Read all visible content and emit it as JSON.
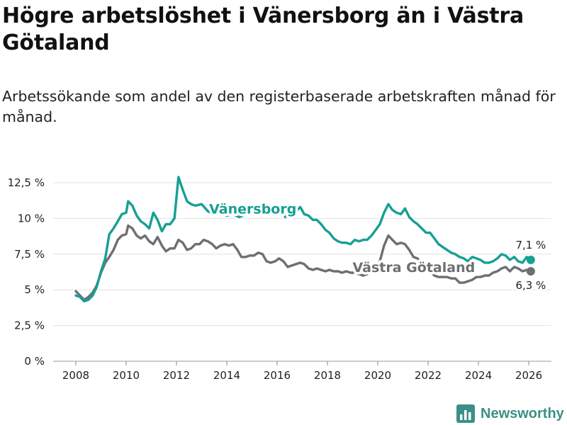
{
  "header": {
    "title": "Högre arbetslöshet i Vänersborg än i Västra Götaland",
    "subtitle": "Arbetssökande som andel av den registerbaserade arbetskraften månad för månad."
  },
  "brand": {
    "name": "Newsworthy",
    "icon": "bar-chart-logo-icon",
    "color": "#3c8f88"
  },
  "chart_data": {
    "type": "line",
    "title": "Högre arbetslöshet i Vänersborg än i Västra Götaland",
    "xlabel": "",
    "ylabel": "",
    "xlim": [
      2007.1,
      2026.9
    ],
    "ylim": [
      0,
      12.5
    ],
    "x_ticks": [
      2008,
      2010,
      2012,
      2014,
      2016,
      2018,
      2020,
      2022,
      2024,
      2026
    ],
    "x_tick_labels": [
      "2008",
      "2010",
      "2012",
      "2014",
      "2016",
      "2018",
      "2020",
      "2022",
      "2024",
      "2026"
    ],
    "y_ticks": [
      0,
      2.5,
      5,
      7.5,
      10,
      12.5
    ],
    "y_tick_labels": [
      "0 %",
      "2,5 %",
      "5 %",
      "7,5 %",
      "10 %",
      "12,5 %"
    ],
    "grid": true,
    "series": [
      {
        "name": "Vänersborg",
        "color": "#16a092",
        "end_label": "7,1 %",
        "points": [
          [
            2008.0,
            4.6
          ],
          [
            2008.17,
            4.5
          ],
          [
            2008.33,
            4.2
          ],
          [
            2008.5,
            4.3
          ],
          [
            2008.67,
            4.6
          ],
          [
            2008.83,
            5.2
          ],
          [
            2009.0,
            6.3
          ],
          [
            2009.17,
            7.2
          ],
          [
            2009.33,
            8.9
          ],
          [
            2009.5,
            9.3
          ],
          [
            2009.67,
            9.8
          ],
          [
            2009.83,
            10.3
          ],
          [
            2010.0,
            10.4
          ],
          [
            2010.08,
            11.2
          ],
          [
            2010.25,
            10.9
          ],
          [
            2010.42,
            10.2
          ],
          [
            2010.58,
            9.8
          ],
          [
            2010.75,
            9.6
          ],
          [
            2010.92,
            9.3
          ],
          [
            2011.08,
            10.4
          ],
          [
            2011.25,
            9.9
          ],
          [
            2011.42,
            9.1
          ],
          [
            2011.58,
            9.6
          ],
          [
            2011.75,
            9.6
          ],
          [
            2011.92,
            10.0
          ],
          [
            2012.08,
            12.9
          ],
          [
            2012.25,
            12.0
          ],
          [
            2012.42,
            11.2
          ],
          [
            2012.58,
            11.0
          ],
          [
            2012.75,
            10.9
          ],
          [
            2013.0,
            11.0
          ],
          [
            2013.25,
            10.5
          ],
          [
            2013.5,
            10.3
          ],
          [
            2013.75,
            10.4
          ],
          [
            2014.0,
            10.2
          ],
          [
            2014.25,
            10.3
          ],
          [
            2014.5,
            10.1
          ],
          [
            2014.75,
            10.3
          ],
          [
            2015.0,
            10.5
          ],
          [
            2015.25,
            10.3
          ],
          [
            2015.5,
            10.5
          ],
          [
            2015.75,
            10.7
          ],
          [
            2016.0,
            10.9
          ],
          [
            2016.17,
            10.6
          ],
          [
            2016.33,
            10.1
          ],
          [
            2016.5,
            10.3
          ],
          [
            2016.75,
            10.5
          ],
          [
            2016.92,
            10.8
          ],
          [
            2017.08,
            10.3
          ],
          [
            2017.25,
            10.2
          ],
          [
            2017.42,
            9.9
          ],
          [
            2017.58,
            9.9
          ],
          [
            2017.75,
            9.6
          ],
          [
            2017.92,
            9.2
          ],
          [
            2018.08,
            9.0
          ],
          [
            2018.25,
            8.6
          ],
          [
            2018.42,
            8.4
          ],
          [
            2018.58,
            8.3
          ],
          [
            2018.75,
            8.3
          ],
          [
            2018.92,
            8.2
          ],
          [
            2019.08,
            8.5
          ],
          [
            2019.25,
            8.4
          ],
          [
            2019.42,
            8.5
          ],
          [
            2019.58,
            8.5
          ],
          [
            2019.75,
            8.8
          ],
          [
            2019.92,
            9.2
          ],
          [
            2020.08,
            9.6
          ],
          [
            2020.25,
            10.4
          ],
          [
            2020.42,
            11.0
          ],
          [
            2020.58,
            10.6
          ],
          [
            2020.75,
            10.4
          ],
          [
            2020.92,
            10.3
          ],
          [
            2021.08,
            10.7
          ],
          [
            2021.25,
            10.1
          ],
          [
            2021.42,
            9.8
          ],
          [
            2021.58,
            9.6
          ],
          [
            2021.75,
            9.3
          ],
          [
            2021.92,
            9.0
          ],
          [
            2022.08,
            9.0
          ],
          [
            2022.25,
            8.6
          ],
          [
            2022.42,
            8.2
          ],
          [
            2022.58,
            8.0
          ],
          [
            2022.75,
            7.8
          ],
          [
            2022.92,
            7.6
          ],
          [
            2023.08,
            7.5
          ],
          [
            2023.25,
            7.3
          ],
          [
            2023.42,
            7.2
          ],
          [
            2023.58,
            7.0
          ],
          [
            2023.75,
            7.3
          ],
          [
            2023.92,
            7.2
          ],
          [
            2024.08,
            7.1
          ],
          [
            2024.25,
            6.9
          ],
          [
            2024.42,
            6.9
          ],
          [
            2024.58,
            7.0
          ],
          [
            2024.75,
            7.2
          ],
          [
            2024.92,
            7.5
          ],
          [
            2025.08,
            7.4
          ],
          [
            2025.25,
            7.1
          ],
          [
            2025.42,
            7.3
          ],
          [
            2025.58,
            7.0
          ],
          [
            2025.75,
            6.9
          ],
          [
            2025.92,
            7.3
          ],
          [
            2026.08,
            7.1
          ]
        ]
      },
      {
        "name": "Västra Götaland",
        "color": "#6e6e73",
        "end_label": "6,3 %",
        "points": [
          [
            2008.0,
            4.9
          ],
          [
            2008.17,
            4.6
          ],
          [
            2008.33,
            4.3
          ],
          [
            2008.5,
            4.5
          ],
          [
            2008.67,
            4.8
          ],
          [
            2008.83,
            5.3
          ],
          [
            2009.0,
            6.2
          ],
          [
            2009.17,
            6.9
          ],
          [
            2009.33,
            7.3
          ],
          [
            2009.5,
            7.8
          ],
          [
            2009.67,
            8.5
          ],
          [
            2009.83,
            8.8
          ],
          [
            2010.0,
            8.9
          ],
          [
            2010.08,
            9.5
          ],
          [
            2010.25,
            9.3
          ],
          [
            2010.42,
            8.8
          ],
          [
            2010.58,
            8.6
          ],
          [
            2010.75,
            8.8
          ],
          [
            2010.92,
            8.4
          ],
          [
            2011.08,
            8.2
          ],
          [
            2011.25,
            8.7
          ],
          [
            2011.42,
            8.1
          ],
          [
            2011.58,
            7.7
          ],
          [
            2011.75,
            7.9
          ],
          [
            2011.92,
            7.9
          ],
          [
            2012.08,
            8.5
          ],
          [
            2012.25,
            8.3
          ],
          [
            2012.42,
            7.8
          ],
          [
            2012.58,
            7.9
          ],
          [
            2012.75,
            8.2
          ],
          [
            2012.92,
            8.2
          ],
          [
            2013.08,
            8.5
          ],
          [
            2013.25,
            8.4
          ],
          [
            2013.42,
            8.2
          ],
          [
            2013.58,
            7.9
          ],
          [
            2013.75,
            8.1
          ],
          [
            2013.92,
            8.2
          ],
          [
            2014.08,
            8.1
          ],
          [
            2014.25,
            8.2
          ],
          [
            2014.42,
            7.8
          ],
          [
            2014.58,
            7.3
          ],
          [
            2014.75,
            7.3
          ],
          [
            2014.92,
            7.4
          ],
          [
            2015.08,
            7.4
          ],
          [
            2015.25,
            7.6
          ],
          [
            2015.42,
            7.5
          ],
          [
            2015.58,
            7.0
          ],
          [
            2015.75,
            6.9
          ],
          [
            2015.92,
            7.0
          ],
          [
            2016.08,
            7.2
          ],
          [
            2016.25,
            7.0
          ],
          [
            2016.42,
            6.6
          ],
          [
            2016.58,
            6.7
          ],
          [
            2016.75,
            6.8
          ],
          [
            2016.92,
            6.9
          ],
          [
            2017.08,
            6.8
          ],
          [
            2017.25,
            6.5
          ],
          [
            2017.42,
            6.4
          ],
          [
            2017.58,
            6.5
          ],
          [
            2017.75,
            6.4
          ],
          [
            2017.92,
            6.3
          ],
          [
            2018.08,
            6.4
          ],
          [
            2018.25,
            6.3
          ],
          [
            2018.42,
            6.3
          ],
          [
            2018.58,
            6.2
          ],
          [
            2018.75,
            6.3
          ],
          [
            2018.92,
            6.2
          ],
          [
            2019.08,
            6.2
          ],
          [
            2019.25,
            6.1
          ],
          [
            2019.42,
            6.0
          ],
          [
            2019.58,
            6.1
          ],
          [
            2019.75,
            6.3
          ],
          [
            2019.92,
            6.5
          ],
          [
            2020.08,
            7.0
          ],
          [
            2020.25,
            8.1
          ],
          [
            2020.42,
            8.8
          ],
          [
            2020.58,
            8.5
          ],
          [
            2020.75,
            8.2
          ],
          [
            2020.92,
            8.3
          ],
          [
            2021.08,
            8.2
          ],
          [
            2021.25,
            7.8
          ],
          [
            2021.42,
            7.3
          ],
          [
            2021.58,
            7.2
          ],
          [
            2021.75,
            6.8
          ],
          [
            2021.92,
            6.6
          ],
          [
            2022.08,
            6.3
          ],
          [
            2022.25,
            6.0
          ],
          [
            2022.42,
            5.9
          ],
          [
            2022.58,
            5.9
          ],
          [
            2022.75,
            5.9
          ],
          [
            2022.92,
            5.8
          ],
          [
            2023.08,
            5.8
          ],
          [
            2023.25,
            5.5
          ],
          [
            2023.42,
            5.5
          ],
          [
            2023.58,
            5.6
          ],
          [
            2023.75,
            5.7
          ],
          [
            2023.92,
            5.9
          ],
          [
            2024.08,
            5.9
          ],
          [
            2024.25,
            6.0
          ],
          [
            2024.42,
            6.0
          ],
          [
            2024.58,
            6.2
          ],
          [
            2024.75,
            6.3
          ],
          [
            2024.92,
            6.5
          ],
          [
            2025.08,
            6.6
          ],
          [
            2025.25,
            6.3
          ],
          [
            2025.42,
            6.6
          ],
          [
            2025.58,
            6.5
          ],
          [
            2025.75,
            6.3
          ],
          [
            2025.92,
            6.4
          ],
          [
            2026.08,
            6.3
          ]
        ]
      }
    ],
    "annotations": [
      {
        "text": "Vänersborg",
        "series": "Vänersborg",
        "at_x": 2013.3,
        "at_y": 10.7
      },
      {
        "text": "Västra Götaland",
        "series": "Västra Götaland",
        "at_x": 2019.0,
        "at_y": 6.6
      }
    ]
  }
}
